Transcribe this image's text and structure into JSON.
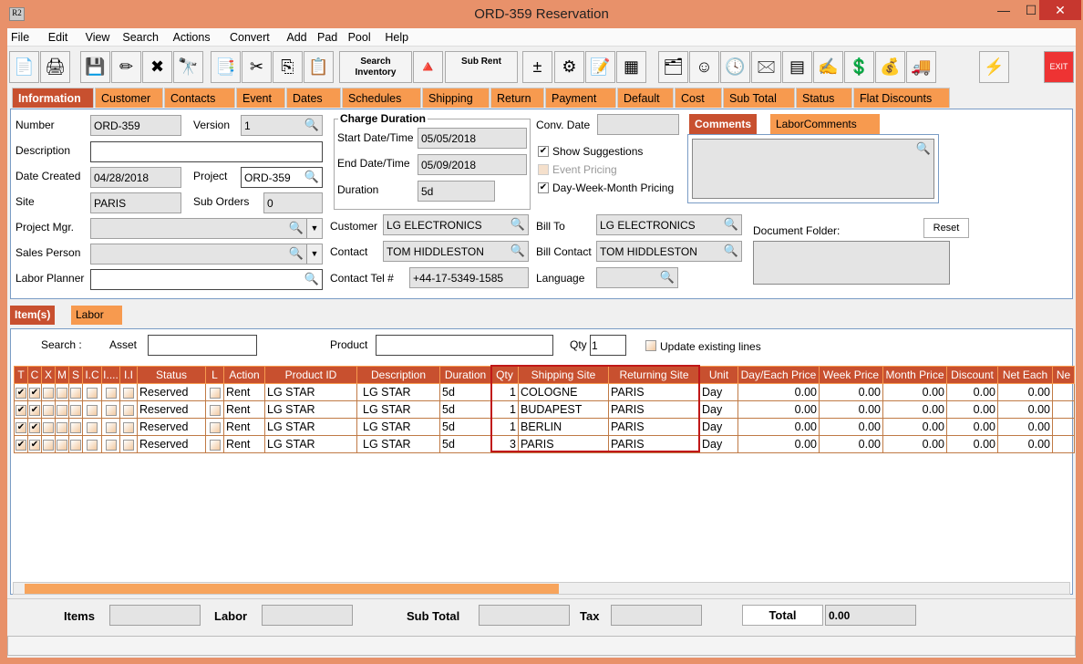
{
  "window": {
    "title": "ORD-359 Reservation",
    "logo": "R2",
    "min": "—",
    "max": "☐",
    "close": "✕"
  },
  "menu": [
    "File",
    "Edit",
    "View",
    "Search",
    "Actions",
    "Convert",
    "Add",
    "Pad",
    "Pool",
    "Help"
  ],
  "toolbar": {
    "search_inventory": "Search Inventory",
    "sub_rent": "Sub Rent",
    "exit": "EXIT"
  },
  "tabs": [
    "Information",
    "Customer",
    "Contacts",
    "Event",
    "Dates",
    "Schedules",
    "Shipping",
    "Return",
    "Payment",
    "Default",
    "Cost",
    "Sub Total",
    "Status",
    "Flat Discounts"
  ],
  "form": {
    "number_label": "Number",
    "number": "ORD-359",
    "version_label": "Version",
    "version": "1",
    "description_label": "Description",
    "description": "",
    "date_created_label": "Date Created",
    "date_created": "04/28/2018",
    "project_label": "Project",
    "project": "ORD-359",
    "site_label": "Site",
    "site": "PARIS",
    "sub_orders_label": "Sub Orders",
    "sub_orders": "0",
    "project_mgr_label": "Project Mgr.",
    "sales_person_label": "Sales Person",
    "labor_planner_label": "Labor Planner",
    "charge_duration_title": "Charge Duration",
    "start_label": "Start Date/Time",
    "start": "05/05/2018",
    "end_label": "End Date/Time",
    "end": "05/09/2018",
    "duration_label": "Duration",
    "duration": "5d",
    "conv_date_label": "Conv. Date",
    "show_suggestions": "Show Suggestions",
    "event_pricing": "Event Pricing",
    "dwm_pricing": "Day-Week-Month Pricing",
    "customer_label": "Customer",
    "customer": "LG ELECTRONICS",
    "contact_label": "Contact",
    "contact": "TOM HIDDLESTON",
    "contact_tel_label": "Contact Tel #",
    "contact_tel": "+44-17-5349-1585",
    "bill_to_label": "Bill To",
    "bill_to": "LG ELECTRONICS",
    "bill_contact_label": "Bill Contact",
    "bill_contact": "TOM HIDDLESTON",
    "language_label": "Language",
    "comments_tab": "Comments",
    "labor_comments_tab": "LaborComments",
    "document_folder_label": "Document Folder:",
    "reset": "Reset"
  },
  "subtabs": [
    "Item(s)",
    "Labor"
  ],
  "search": {
    "label": "Search :",
    "asset_label": "Asset",
    "product_label": "Product",
    "qty_label": "Qty",
    "qty": "1",
    "update_label": "Update existing lines"
  },
  "table": {
    "columns": [
      "T",
      "C",
      "X",
      "M",
      "S",
      "I.C",
      "I....",
      "I.I",
      "Status",
      "L",
      "Action",
      "Product ID",
      "Description",
      "Duration",
      "Qty",
      "Shipping Site",
      "Returning Site",
      "Unit",
      "Day/Each Price",
      "Week Price",
      "Month Price",
      "Discount",
      "Net Each",
      "Ne"
    ],
    "rows": [
      {
        "status": "Reserved",
        "action": "Rent",
        "product_id": "LG STAR",
        "description": "LG STAR",
        "duration": "5d",
        "qty": "1",
        "shipping": "COLOGNE",
        "returning": "PARIS",
        "unit": "Day",
        "day": "0.00",
        "week": "0.00",
        "month": "0.00",
        "discount": "0.00",
        "net": "0.00"
      },
      {
        "status": "Reserved",
        "action": "Rent",
        "product_id": "LG STAR",
        "description": "LG STAR",
        "duration": "5d",
        "qty": "1",
        "shipping": "BUDAPEST",
        "returning": "PARIS",
        "unit": "Day",
        "day": "0.00",
        "week": "0.00",
        "month": "0.00",
        "discount": "0.00",
        "net": "0.00"
      },
      {
        "status": "Reserved",
        "action": "Rent",
        "product_id": "LG STAR",
        "description": "LG STAR",
        "duration": "5d",
        "qty": "1",
        "shipping": "BERLIN",
        "returning": "PARIS",
        "unit": "Day",
        "day": "0.00",
        "week": "0.00",
        "month": "0.00",
        "discount": "0.00",
        "net": "0.00"
      },
      {
        "status": "Reserved",
        "action": "Rent",
        "product_id": "LG STAR",
        "description": "LG STAR",
        "duration": "5d",
        "qty": "3",
        "shipping": "PARIS",
        "returning": "PARIS",
        "unit": "Day",
        "day": "0.00",
        "week": "0.00",
        "month": "0.00",
        "discount": "0.00",
        "net": "0.00"
      }
    ]
  },
  "footer": {
    "items_label": "Items",
    "labor_label": "Labor",
    "sub_total_label": "Sub Total",
    "tax_label": "Tax",
    "total_label": "Total",
    "total": "0.00"
  },
  "colors": {
    "accent": "#c8502f",
    "tab": "#f79a4f",
    "frame": "#e8916a",
    "highlight": "#c01818"
  }
}
